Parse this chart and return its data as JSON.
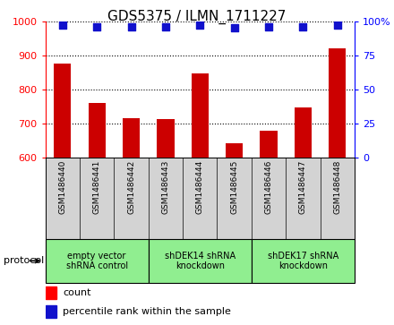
{
  "title": "GDS5375 / ILMN_1711227",
  "samples": [
    "GSM1486440",
    "GSM1486441",
    "GSM1486442",
    "GSM1486443",
    "GSM1486444",
    "GSM1486445",
    "GSM1486446",
    "GSM1486447",
    "GSM1486448"
  ],
  "counts": [
    875,
    760,
    715,
    712,
    848,
    643,
    680,
    748,
    920
  ],
  "percentile_ranks": [
    97,
    96,
    96,
    96,
    97,
    95,
    96,
    96,
    97
  ],
  "ylim_left": [
    600,
    1000
  ],
  "ylim_right": [
    0,
    100
  ],
  "yticks_left": [
    600,
    700,
    800,
    900,
    1000
  ],
  "yticks_right": [
    0,
    25,
    50,
    75,
    100
  ],
  "bar_color": "#cc0000",
  "scatter_color": "#1111cc",
  "groups": [
    {
      "label": "empty vector\nshRNA control",
      "start": 0,
      "end": 3
    },
    {
      "label": "shDEK14 shRNA\nknockdown",
      "start": 3,
      "end": 6
    },
    {
      "label": "shDEK17 shRNA\nknockdown",
      "start": 6,
      "end": 9
    }
  ],
  "group_color": "#90ee90",
  "protocol_label": "protocol",
  "legend_count_label": "count",
  "legend_pct_label": "percentile rank within the sample",
  "sample_bg": "#d3d3d3",
  "bar_width": 0.5,
  "scatter_size": 30
}
